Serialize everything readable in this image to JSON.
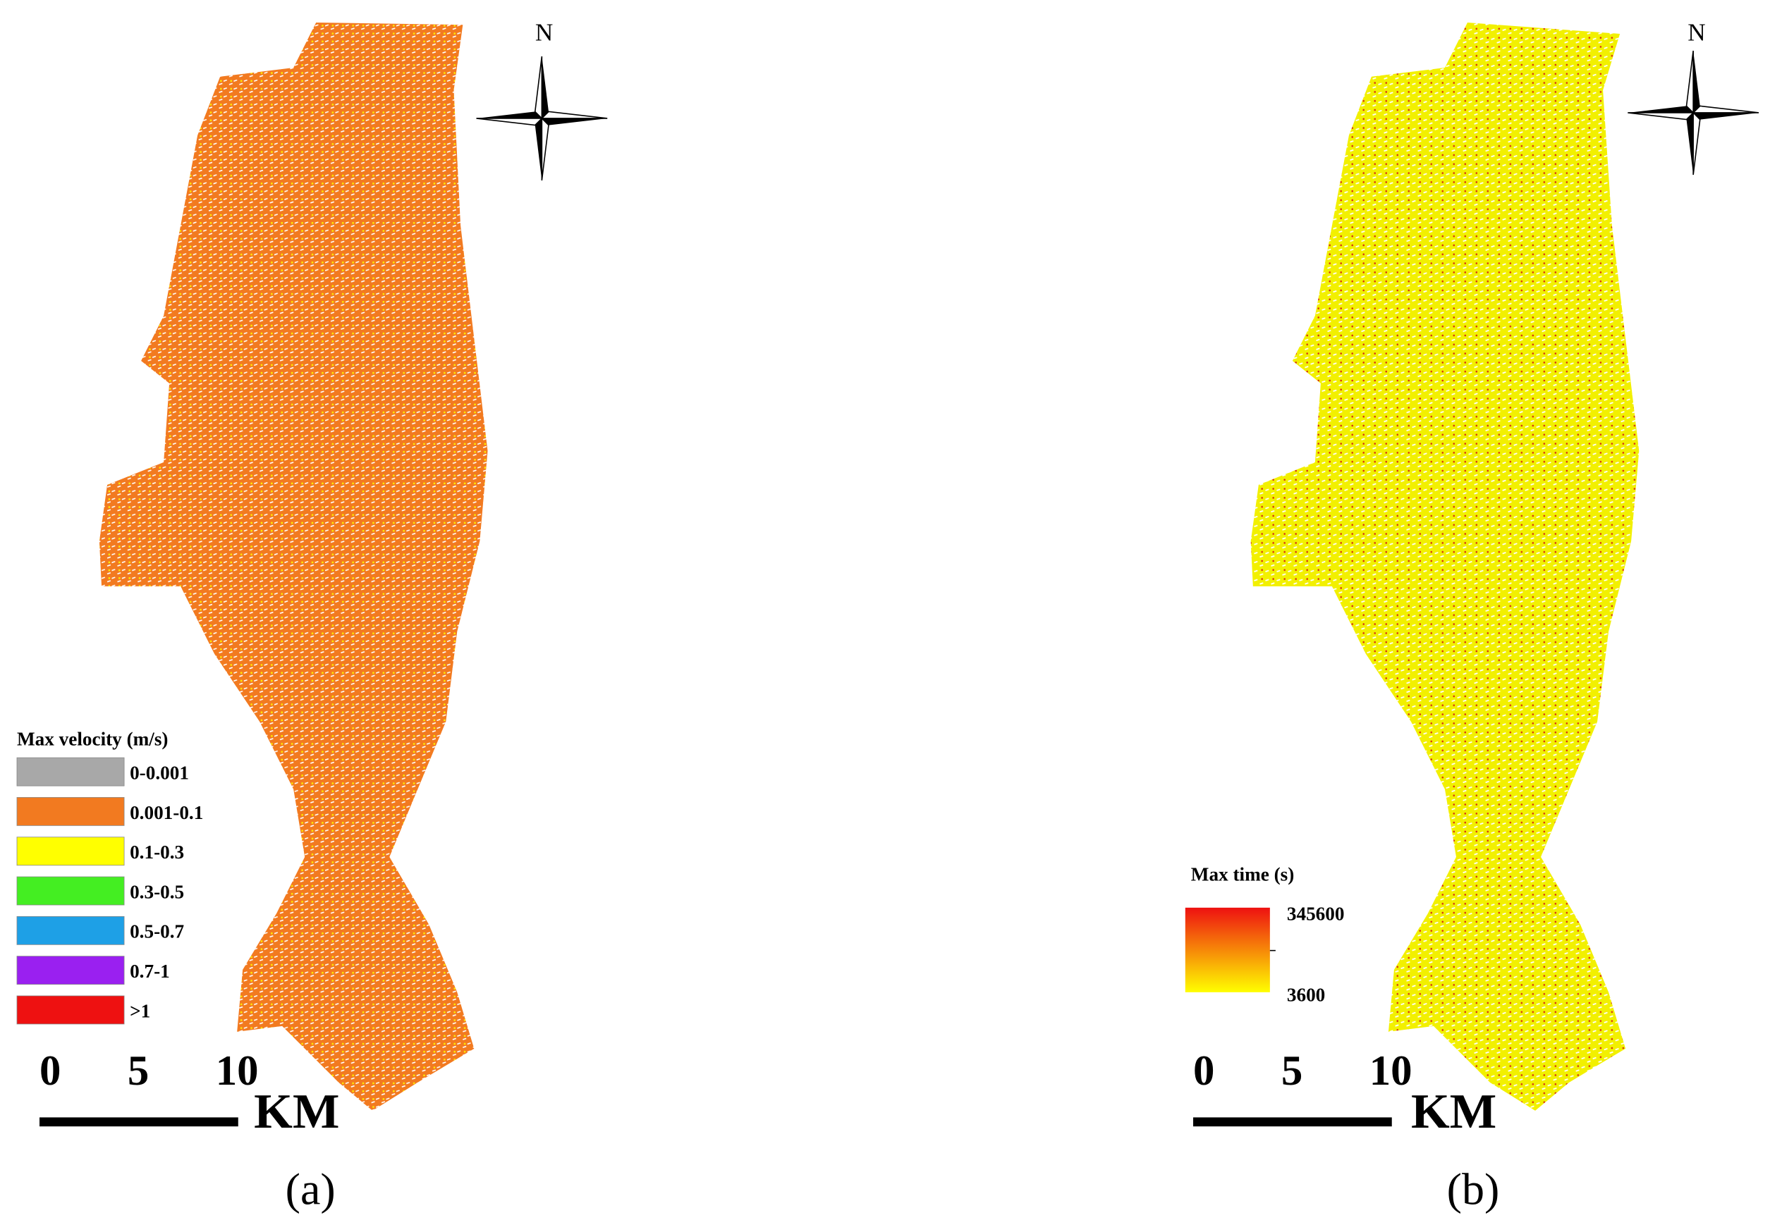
{
  "panels": [
    {
      "label": "(a)",
      "north": "N",
      "legend": {
        "title": "Max velocity (m/s)",
        "items": [
          {
            "label": "0-0.001",
            "color": "#a8a8a8"
          },
          {
            "label": "0.001-0.1",
            "color": "#f27a20"
          },
          {
            "label": "0.1-0.3",
            "color": "#ffff00"
          },
          {
            "label": "0.3-0.5",
            "color": "#44ee22"
          },
          {
            "label": "0.5-0.7",
            "color": "#1ea0e6"
          },
          {
            "label": "0.7-1",
            "color": "#9a20f0"
          },
          {
            "label": ">1",
            "color": "#ee1111"
          }
        ]
      },
      "scale_bar": {
        "ticks": [
          "0",
          "5",
          "10"
        ],
        "unit": "KM"
      }
    },
    {
      "label": "(b)",
      "north": "N",
      "legend": {
        "title": "Max time (s)",
        "max_label": "345600",
        "min_label": "3600",
        "max_color": "#ee1111",
        "min_color": "#ffff00"
      },
      "scale_bar": {
        "ticks": [
          "0",
          "5",
          "10"
        ],
        "unit": "KM"
      }
    }
  ]
}
